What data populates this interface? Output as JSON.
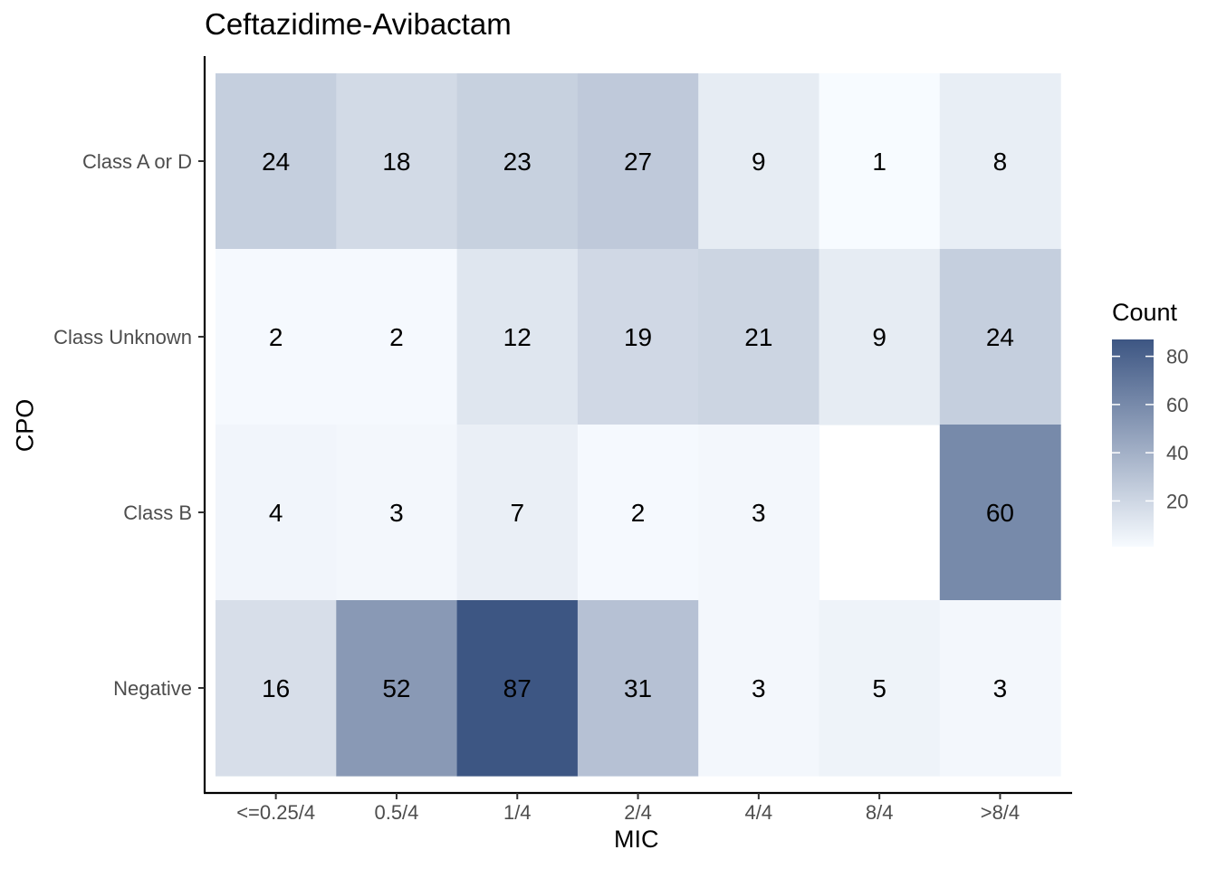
{
  "chart_data": {
    "type": "heatmap",
    "title": "Ceftazidime-Avibactam",
    "xlabel": "MIC",
    "ylabel": "CPO",
    "x_categories": [
      "<=0.25/4",
      "0.5/4",
      "1/4",
      "2/4",
      "4/4",
      "8/4",
      ">8/4"
    ],
    "y_categories": [
      "Class A or D",
      "Class Unknown",
      "Class B",
      "Negative"
    ],
    "values": [
      [
        24,
        18,
        23,
        27,
        9,
        1,
        8
      ],
      [
        2,
        2,
        12,
        19,
        21,
        9,
        24
      ],
      [
        4,
        3,
        7,
        2,
        3,
        null,
        60
      ],
      [
        16,
        52,
        87,
        31,
        3,
        5,
        3
      ]
    ],
    "legend": {
      "title": "Count",
      "ticks": [
        "20",
        "40",
        "60",
        "80"
      ],
      "tick_values": [
        20,
        40,
        60,
        80
      ],
      "range": [
        1,
        87
      ],
      "low_color": "#f7fbff",
      "high_color": "#3d5683",
      "placement": "right"
    },
    "grid": false
  }
}
